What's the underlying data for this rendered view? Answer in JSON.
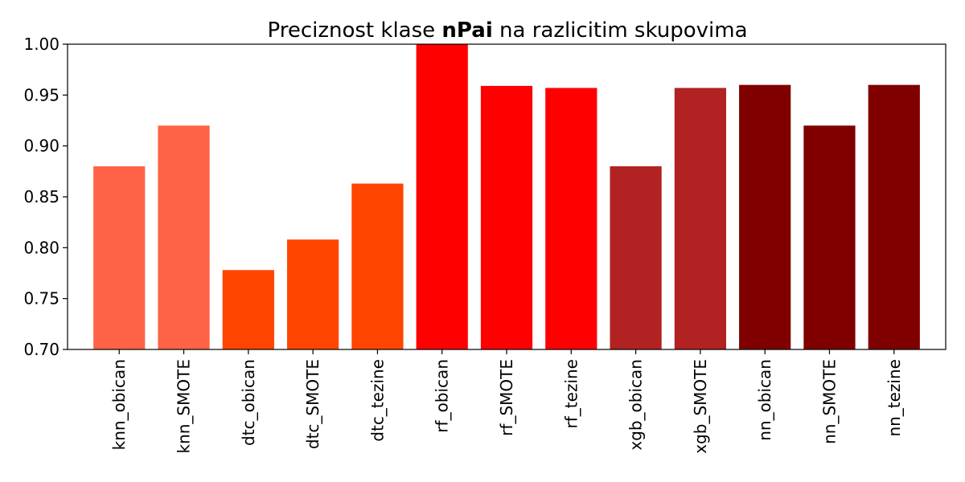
{
  "chart_data": {
    "type": "bar",
    "title": {
      "prefix": "Preciznost klase ",
      "bold": "nPai",
      "suffix": " na razlicitim skupovima"
    },
    "xlabel": "",
    "ylabel": "",
    "ylim": [
      0.7,
      1.0
    ],
    "yticks": [
      "0.70",
      "0.75",
      "0.80",
      "0.85",
      "0.90",
      "0.95",
      "1.00"
    ],
    "grid": false,
    "categories": [
      "knn_obican",
      "knn_SMOTE",
      "dtc_obican",
      "dtc_SMOTE",
      "dtc_tezine",
      "rf_obican",
      "rf_SMOTE",
      "rf_tezine",
      "xgb_obican",
      "xgb_SMOTE",
      "nn_obican",
      "nn_SMOTE",
      "nn_tezine"
    ],
    "values": [
      0.88,
      0.92,
      0.778,
      0.808,
      0.863,
      1.0,
      0.959,
      0.957,
      0.88,
      0.957,
      0.96,
      0.92,
      0.96
    ],
    "colors": [
      "#ff6347",
      "#ff6347",
      "#ff4500",
      "#ff4500",
      "#ff4500",
      "#ff0000",
      "#ff0000",
      "#ff0000",
      "#b22222",
      "#b22222",
      "#800000",
      "#800000",
      "#800000"
    ]
  }
}
